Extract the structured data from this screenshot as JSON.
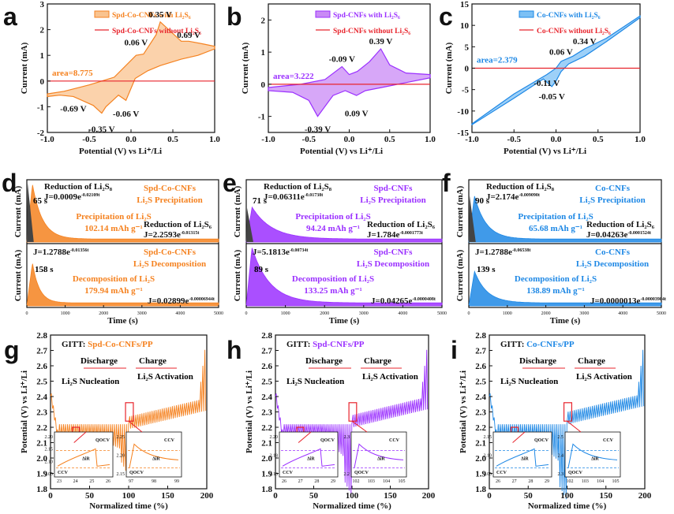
{
  "colors": {
    "orange": "#f58220",
    "orange_fill": "#f9c38f",
    "purple": "#9b30ff",
    "purple_fill": "#c98af5",
    "blue": "#1e88e5",
    "blue_fill": "#7cc0f5",
    "red": "#e8242c",
    "black": "#111111"
  },
  "panel_labels": {
    "a": "a",
    "b": "b",
    "c": "c",
    "d": "d",
    "e": "e",
    "f": "f",
    "g": "g",
    "h": "h",
    "i": "i"
  },
  "cv_axes": {
    "xlabel": "Potential (V) vs Li⁺/Li",
    "ylabel": "Current (mA)",
    "xticks": [
      "-1.0",
      "-0.5",
      "0.0",
      "0.5",
      "1.0"
    ]
  },
  "chart_data": [
    {
      "panel": "a",
      "type": "line",
      "title": "",
      "legend": [
        "Spd-Co-CNFs with Li₂S₆",
        "Spd-Co-CNFs without Li₂S₆"
      ],
      "xlim": [
        -1.0,
        1.0
      ],
      "ylim": [
        -2.0,
        3.0
      ],
      "yticks": [
        "3",
        "2",
        "1",
        "0",
        "-1",
        "-2"
      ],
      "area": "area=8.775",
      "peaks": [
        {
          "label": "0.35 V",
          "x": 0.35,
          "y": 2.3
        },
        {
          "label": "0.06 V",
          "x": 0.06,
          "y": 1.2
        },
        {
          "label": "0.69 V",
          "x": 0.69,
          "y": 1.5
        },
        {
          "label": "-0.69 V",
          "x": -0.69,
          "y": -0.7
        },
        {
          "label": "-0.06 V",
          "x": -0.06,
          "y": -0.9
        },
        {
          "label": "-0.35 V",
          "x": -0.35,
          "y": -1.5
        }
      ],
      "upper": [
        [
          -1.0,
          -0.5
        ],
        [
          -0.8,
          -0.4
        ],
        [
          -0.5,
          -0.15
        ],
        [
          -0.2,
          0.15
        ],
        [
          0.06,
          1.0
        ],
        [
          0.15,
          1.05
        ],
        [
          0.3,
          1.8
        ],
        [
          0.35,
          2.3
        ],
        [
          0.45,
          2.0
        ],
        [
          0.6,
          1.55
        ],
        [
          0.69,
          1.55
        ],
        [
          0.85,
          1.45
        ],
        [
          1.0,
          1.35
        ]
      ],
      "lower": [
        [
          1.0,
          1.25
        ],
        [
          0.8,
          1.0
        ],
        [
          0.6,
          0.85
        ],
        [
          0.35,
          0.6
        ],
        [
          0.2,
          0.4
        ],
        [
          0.05,
          0.1
        ],
        [
          -0.06,
          -0.75
        ],
        [
          -0.15,
          -0.55
        ],
        [
          -0.3,
          -1.0
        ],
        [
          -0.35,
          -1.25
        ],
        [
          -0.45,
          -0.95
        ],
        [
          -0.69,
          -0.6
        ],
        [
          -0.85,
          -0.55
        ],
        [
          -1.0,
          -0.6
        ]
      ],
      "baseline": [
        [
          -1.0,
          0.0
        ],
        [
          1.0,
          0.0
        ]
      ]
    },
    {
      "panel": "b",
      "type": "line",
      "title": "",
      "legend": [
        "Spd-CNFs with Li₂S₆",
        "Spd-CNFs without Li₂S₆"
      ],
      "xlim": [
        -1.0,
        1.0
      ],
      "ylim": [
        -1.5,
        2.5
      ],
      "yticks": [
        "2",
        "1",
        "0",
        "-1"
      ],
      "area": "area=3.222",
      "peaks": [
        {
          "label": "0.39 V",
          "x": 0.39,
          "y": 1.1
        },
        {
          "label": "-0.09 V",
          "x": -0.09,
          "y": 0.55
        },
        {
          "label": "0.09 V",
          "x": 0.09,
          "y": -0.6
        },
        {
          "label": "-0.39 V",
          "x": -0.39,
          "y": -1.1
        }
      ],
      "upper": [
        [
          -1.0,
          -0.1
        ],
        [
          -0.6,
          0.0
        ],
        [
          -0.3,
          0.15
        ],
        [
          -0.09,
          0.55
        ],
        [
          0.0,
          0.3
        ],
        [
          0.1,
          0.4
        ],
        [
          0.25,
          0.7
        ],
        [
          0.39,
          1.1
        ],
        [
          0.5,
          0.6
        ],
        [
          0.7,
          0.35
        ],
        [
          1.0,
          0.3
        ]
      ],
      "lower": [
        [
          1.0,
          0.2
        ],
        [
          0.7,
          0.05
        ],
        [
          0.4,
          -0.1
        ],
        [
          0.2,
          -0.2
        ],
        [
          0.09,
          -0.35
        ],
        [
          -0.05,
          -0.2
        ],
        [
          -0.2,
          -0.35
        ],
        [
          -0.39,
          -1.0
        ],
        [
          -0.5,
          -0.5
        ],
        [
          -0.7,
          -0.25
        ],
        [
          -1.0,
          -0.2
        ]
      ],
      "baseline": [
        [
          -1.0,
          0.0
        ],
        [
          1.0,
          0.0
        ]
      ]
    },
    {
      "panel": "c",
      "type": "line",
      "title": "",
      "legend": [
        "Co-CNFs with Li₂S₆",
        "Co-CNFs without Li₂S₆"
      ],
      "xlim": [
        -1.0,
        1.0
      ],
      "ylim": [
        -15,
        15
      ],
      "yticks": [
        "15",
        "10",
        "5",
        "0",
        "-5",
        "-10",
        "-15"
      ],
      "area": "area=2.379",
      "peaks": [
        {
          "label": "0.34 V",
          "x": 0.34,
          "y": 4.5
        },
        {
          "label": "0.06 V",
          "x": 0.06,
          "y": 2.0
        },
        {
          "label": "-0.11 V",
          "x": -0.11,
          "y": -1.2
        },
        {
          "label": "-0.05 V",
          "x": -0.05,
          "y": -4.3
        }
      ],
      "upper": [
        [
          -1.0,
          -13.0
        ],
        [
          -0.5,
          -6.0
        ],
        [
          -0.11,
          -1.5
        ],
        [
          0.0,
          0.0
        ],
        [
          0.06,
          1.6
        ],
        [
          0.2,
          2.8
        ],
        [
          0.34,
          4.5
        ],
        [
          0.6,
          7.0
        ],
        [
          1.0,
          12.2
        ]
      ],
      "lower": [
        [
          1.0,
          11.8
        ],
        [
          0.6,
          6.2
        ],
        [
          0.34,
          2.8
        ],
        [
          0.15,
          1.0
        ],
        [
          0.06,
          -0.8
        ],
        [
          0.0,
          -3.0
        ],
        [
          -0.05,
          -4.3
        ],
        [
          -0.15,
          -2.5
        ],
        [
          -0.5,
          -7.0
        ],
        [
          -1.0,
          -13.2
        ]
      ],
      "baseline": [
        [
          -1.0,
          0.0
        ],
        [
          1.0,
          0.0
        ]
      ]
    }
  ],
  "pot_axes": {
    "xlabel": "Time (s)",
    "ylabel_top": "Current (mA)",
    "ylabel_bottom": "Current (mA)",
    "xticks": [
      "0",
      "1000",
      "2000",
      "3000",
      "4000",
      "5000"
    ]
  },
  "pot_panels": [
    {
      "panel": "d",
      "color": "#f58220",
      "top": {
        "red": "Reduction of Li₂S₈",
        "red_eq": "J=0.0009e",
        "red_exp": "-0.02109t",
        "time": "65 s",
        "title1": "Spd-Co-CNFs",
        "title2": "Li₂S Precipitation",
        "cap1": "Precipitation of Li₂S",
        "cap2": "102.14 mAh g⁻¹",
        "r6": "Reduction of Li₂S₆",
        "r6_eq": "J=2.2593e",
        "r6_exp": "-0.01315t",
        "peak": 0.95,
        "decay": 260
      },
      "bottom": {
        "eq1": "J=1.2788e",
        "eq1_exp": "-0.01356t",
        "time": "158 s",
        "title1": "Spd-Co-CNFs",
        "title2": "Li₂S Decomposition",
        "cap1": "Decomposition of Li₂S",
        "cap2": "179.94 mAh g⁻¹",
        "eq2": "J=0.02899e",
        "eq2_exp": "-0.00006944t",
        "peak": 0.7,
        "decay": 180
      }
    },
    {
      "panel": "e",
      "color": "#9b30ff",
      "top": {
        "red": "Reduction of Li₂S₈",
        "red_eq": "J=0.06311e",
        "red_exp": "-0.01738t",
        "time": "71 s",
        "title1": "Spd-CNFs",
        "title2": "Li₂S Precipitation",
        "cap1": "Precipitation of Li₂S",
        "cap2": "94.24 mAh g⁻¹",
        "r6": "Reduction of Li₂S₆",
        "r6_eq": "J=1.784e",
        "r6_exp": "-0.0001773t",
        "peak": 0.55,
        "decay": 500
      },
      "bottom": {
        "eq1": "J=5.1813e",
        "eq1_exp": "-0.00734t",
        "time": "89 s",
        "title1": "Spd-CNFs",
        "title2": "Li₂S Decomposition",
        "cap1": "Decomposition of Li₂S",
        "cap2": "133.25 mAh g⁻¹",
        "eq2": "J=0.04265e",
        "eq2_exp": "-0.0000408t",
        "peak": 0.95,
        "decay": 450
      }
    },
    {
      "panel": "f",
      "color": "#1e88e5",
      "top": {
        "red": "Reduction of Li₂S₈",
        "red_eq": "J=2.174e",
        "red_exp": "-0.009090t",
        "time": "90 s",
        "title1": "Co-CNFs",
        "title2": "Li₂S Precipitation",
        "cap1": "Precipitation of Li₂S",
        "cap2": "65.68 mAh g⁻¹",
        "r6": "Reduction of Li₂S₆",
        "r6_eq": "J=0.04263e",
        "r6_exp": "-0.0001524t",
        "peak": 0.75,
        "decay": 300
      },
      "bottom": {
        "eq1": "J=1.2788e",
        "eq1_exp": "-0.06538t",
        "time": "139 s",
        "title1": "Co-CNFs",
        "title2": "Li₂S Decomposition",
        "cap1": "Decomposition of Li₂S",
        "cap2": "138.89 mAh g⁻¹",
        "eq2": "J=0.0000013e",
        "eq2_exp": "-0.00003984t",
        "peak": 0.55,
        "decay": 320
      }
    }
  ],
  "gitt_axes": {
    "xlabel": "Normalized time (%)",
    "ylabel": "Potential (V) vs Li⁺/Li",
    "yticks": [
      "2.8",
      "2.7",
      "2.6",
      "2.5",
      "2.4",
      "2.3",
      "2.2",
      "2.1",
      "2.0",
      "1.9",
      "1.8"
    ],
    "xticks": [
      "0",
      "50",
      "100",
      "150",
      "200"
    ],
    "ylim": [
      1.8,
      2.8
    ],
    "xlim": [
      0,
      200
    ]
  },
  "gitt_panels": [
    {
      "panel": "g",
      "color": "#f58220",
      "title_prefix": "GITT: ",
      "title_sample": "Spd-Co-CNFs/PP",
      "discharge": "Discharge",
      "charge": "Charge",
      "nucleation": "Li₂S Nucleation",
      "activation": "Li₂S Activation",
      "plateau_d": 2.13,
      "plateau_c": 2.27,
      "dip_min": 1.98,
      "inset1": {
        "yticks": [
          "2.20",
          "2.15",
          "2.10",
          "2.05"
        ],
        "xticks": [
          "23",
          "24",
          "25",
          "26"
        ],
        "labels": [
          "QOCV",
          "ΔiR",
          "CCV"
        ]
      },
      "inset2": {
        "yticks": [
          "2.25",
          "2.20",
          "2.15"
        ],
        "xticks": [
          "97",
          "98",
          "99"
        ],
        "labels": [
          "CCV",
          "ΔiR",
          "QOCV"
        ]
      }
    },
    {
      "panel": "h",
      "color": "#9b30ff",
      "title_prefix": "GITT: ",
      "title_sample": "Spd-CNFs/PP",
      "discharge": "Discharge",
      "charge": "Charge",
      "nucleation": "Li₂S Nucleation",
      "activation": "Li₂S Activation",
      "plateau_d": 2.15,
      "plateau_c": 2.28,
      "dip_min": 1.85,
      "inset1": {
        "yticks": [
          "2.20",
          "2.18",
          "2.16"
        ],
        "xticks": [
          "26",
          "27",
          "28",
          "29"
        ],
        "labels": [
          "QOCV",
          "ΔiR",
          "CCV"
        ]
      },
      "inset2": {
        "yticks": [
          "2.3",
          "2.2"
        ],
        "xticks": [
          "102",
          "103",
          "104",
          "105"
        ],
        "labels": [
          "CCV",
          "ΔiR",
          "QOCV"
        ]
      }
    },
    {
      "panel": "i",
      "color": "#1e88e5",
      "title_prefix": "GITT: ",
      "title_sample": "Co-CNFs/PP",
      "discharge": "Discharge",
      "charge": "Charge",
      "nucleation": "Li₂S Nucleation",
      "activation": "Li₂S Activation",
      "plateau_d": 2.12,
      "plateau_c": 2.3,
      "dip_min": 1.82,
      "inset1": {
        "yticks": [
          "2.15",
          "2.10",
          "2.05"
        ],
        "xticks": [
          "26",
          "27",
          "28",
          "29"
        ],
        "labels": [
          "QOCV",
          "ΔiR",
          "CCV"
        ]
      },
      "inset2": {
        "yticks": [
          "2.5",
          "2.4",
          "2.3"
        ],
        "xticks": [
          "102",
          "103",
          "104",
          "105"
        ],
        "labels": [
          "CCV",
          "ΔiR",
          "QOCV"
        ]
      }
    }
  ]
}
